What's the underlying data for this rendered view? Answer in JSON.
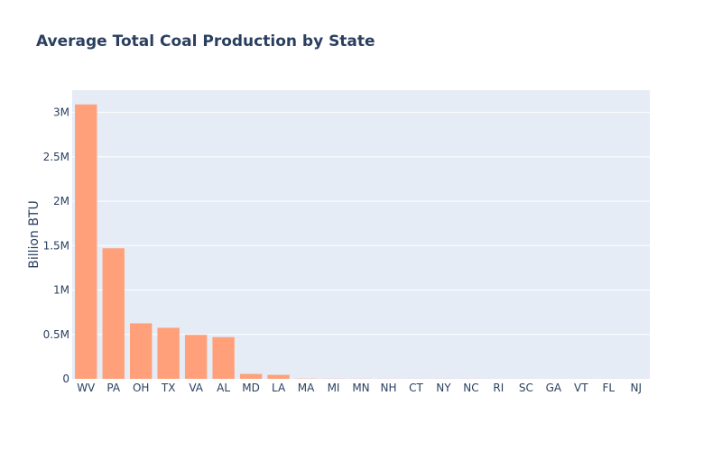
{
  "chart_data": {
    "type": "bar",
    "title": "Average Total Coal Production by State",
    "xlabel": "",
    "ylabel": "Billion BTU",
    "categories": [
      "WV",
      "PA",
      "OH",
      "TX",
      "VA",
      "AL",
      "MD",
      "LA",
      "MA",
      "MI",
      "MN",
      "NH",
      "CT",
      "NY",
      "NC",
      "RI",
      "SC",
      "GA",
      "VT",
      "FL",
      "NJ"
    ],
    "values": [
      3090000,
      1470000,
      625000,
      575000,
      495000,
      470000,
      55000,
      45000,
      3000,
      2000,
      1500,
      1000,
      1000,
      1000,
      1000,
      500,
      500,
      500,
      500,
      500,
      500
    ],
    "ylim": [
      0,
      3250000
    ],
    "y_ticks": [
      0,
      500000,
      1000000,
      1500000,
      2000000,
      2500000,
      3000000
    ],
    "y_tick_labels": [
      "0",
      "0.5M",
      "1M",
      "1.5M",
      "2M",
      "2.5M",
      "3M"
    ],
    "grid": true,
    "colors": {
      "bar": "#ffa07a",
      "plot_bg": "#e5ecf6",
      "grid": "#ffffff",
      "text": "#2a3f5f"
    }
  }
}
